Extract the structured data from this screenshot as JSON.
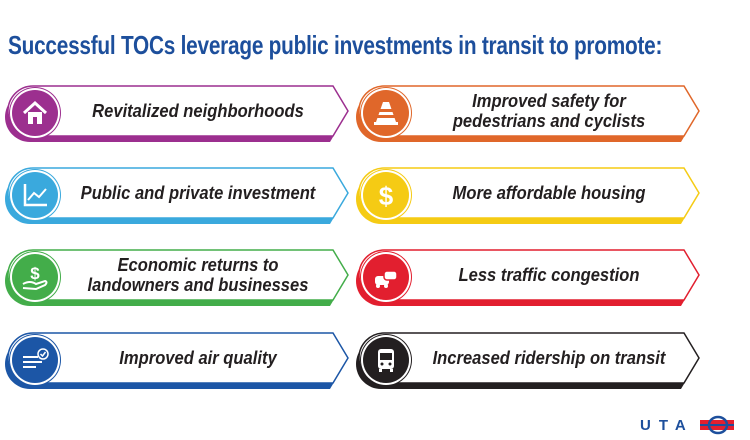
{
  "title": "Successful TOCs leverage public investments in transit to promote:",
  "cards": [
    {
      "label": "Revitalized neighborhoods",
      "icon": "house-icon",
      "color": "#9c2f8f"
    },
    {
      "label": "Improved safety for pedestrians and cyclists",
      "icon": "traffic-cone-icon",
      "color": "#e0672a"
    },
    {
      "label": "Public and private investment",
      "icon": "line-chart-icon",
      "color": "#3aa9dd"
    },
    {
      "label": "More affordable housing",
      "icon": "dollar-icon",
      "color": "#f5cb14"
    },
    {
      "label": "Economic returns to landowners and businesses",
      "icon": "dollar-hand-icon",
      "color": "#43ad4a"
    },
    {
      "label": "Less traffic congestion",
      "icon": "traffic-cars-icon",
      "color": "#e21f2f"
    },
    {
      "label": "Improved air quality",
      "icon": "wind-check-icon",
      "color": "#1c56a6"
    },
    {
      "label": "Increased ridership on transit",
      "icon": "bus-icon",
      "color": "#231f20"
    }
  ],
  "logo": {
    "text": "UTA",
    "colors": {
      "blue": "#1d4f9c",
      "red": "#e21f2f"
    }
  }
}
